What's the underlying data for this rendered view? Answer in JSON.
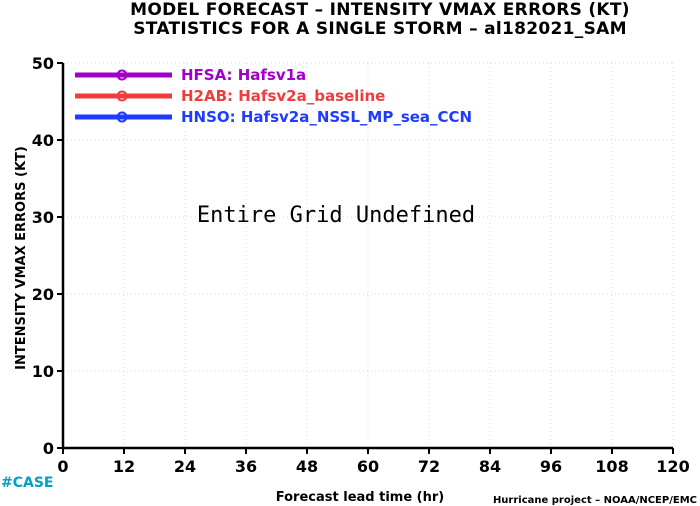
{
  "chart_data": {
    "type": "line",
    "title": "MODEL FORECAST – INTENSITY VMAX ERRORS (KT)",
    "subtitle": "STATISTICS FOR A SINGLE STORM – al182021_SAM",
    "xlabel": "Forecast lead time (hr)",
    "ylabel": "INTENSITY VMAX ERRORS (KT)",
    "xlim": [
      0,
      120
    ],
    "ylim": [
      0,
      50
    ],
    "x_ticks": [
      "0",
      "12",
      "24",
      "36",
      "48",
      "60",
      "72",
      "84",
      "96",
      "108",
      "120"
    ],
    "y_ticks": [
      "0",
      "10",
      "20",
      "30",
      "40",
      "50"
    ],
    "grid": true,
    "legend_position": "top-left",
    "series": [
      {
        "name": "HFSA: Hafsv1a",
        "color": "#a000c8",
        "marker": "circle",
        "values": []
      },
      {
        "name": "H2AB: Hafsv2a_baseline",
        "color": "#f03c3c",
        "marker": "circle",
        "values": []
      },
      {
        "name": "HNSO: Hafsv2a_NSSL_MP_sea_CCN",
        "color": "#1e3cff",
        "marker": "circle",
        "values": []
      }
    ],
    "annotation": "Entire Grid Undefined"
  },
  "case_label": "#CASE",
  "case_label_color": "#00a0c8",
  "credit": "Hurricane project – NOAA/NCEP/EMC"
}
